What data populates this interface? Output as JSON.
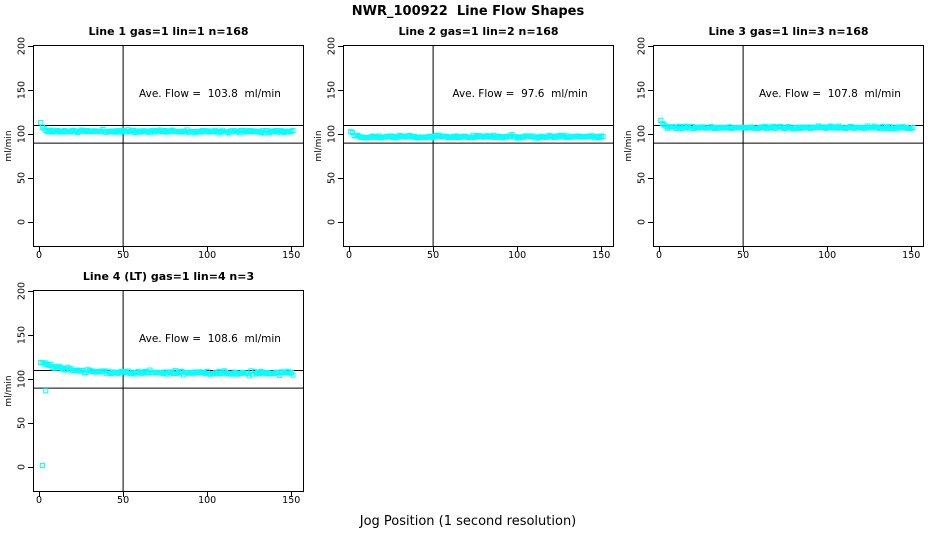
{
  "page": {
    "main_title": "NWR_100922  Line Flow Shapes",
    "x_axis_label": "Jog Position (1 second resolution)"
  },
  "colors": {
    "marker": "#00FFFF",
    "axis": "#000000",
    "background": "#FFFFFF",
    "ref_line": "#000000"
  },
  "chart_data": [
    {
      "type": "scatter",
      "title": "Line 1 gas=1 lin=1 n=168",
      "annotation": "Ave. Flow =  103.8  ml/min",
      "avg_flow_ml_min": 103.8,
      "n": 168,
      "ylabel": "ml/min",
      "x_ticks": [
        "0",
        "50",
        "100",
        "150"
      ],
      "y_ticks": [
        "0",
        "50",
        "100",
        "150",
        "200"
      ],
      "x_tick_values": [
        0,
        50,
        100,
        150
      ],
      "y_tick_values": [
        0,
        50,
        100,
        150,
        200
      ],
      "xlim": [
        -3,
        157
      ],
      "ylim": [
        -27,
        200.5
      ],
      "ref_lines": {
        "h": [
          90,
          110
        ],
        "v": [
          50
        ]
      },
      "marker": "open-square",
      "marker_color": "#00FFFF",
      "series_model": {
        "x_start": 1,
        "x_end": 151,
        "step": 1,
        "start": 113,
        "settle": 103.6,
        "tau": 1.4,
        "noise_sd": 0.7,
        "seed": 11
      },
      "outliers": []
    },
    {
      "type": "scatter",
      "title": "Line 2 gas=1 lin=2 n=168",
      "annotation": "Ave. Flow =  97.6  ml/min",
      "avg_flow_ml_min": 97.6,
      "n": 168,
      "ylabel": "ml/min",
      "x_ticks": [
        "0",
        "50",
        "100",
        "150"
      ],
      "y_ticks": [
        "0",
        "50",
        "100",
        "150",
        "200"
      ],
      "x_tick_values": [
        0,
        50,
        100,
        150
      ],
      "y_tick_values": [
        0,
        50,
        100,
        150,
        200
      ],
      "xlim": [
        -3,
        157
      ],
      "ylim": [
        -27,
        200.5
      ],
      "ref_lines": {
        "h": [
          90,
          110
        ],
        "v": [
          50
        ]
      },
      "marker": "open-square",
      "marker_color": "#00FFFF",
      "series_model": {
        "x_start": 1,
        "x_end": 151,
        "step": 1,
        "start": 104,
        "settle": 97.3,
        "tau": 2.2,
        "noise_sd": 0.8,
        "seed": 22
      },
      "outliers": []
    },
    {
      "type": "scatter",
      "title": "Line 3 gas=1 lin=3 n=168",
      "annotation": "Ave. Flow =  107.8  ml/min",
      "avg_flow_ml_min": 107.8,
      "n": 168,
      "ylabel": "ml/min",
      "x_ticks": [
        "0",
        "50",
        "100",
        "150"
      ],
      "y_ticks": [
        "0",
        "50",
        "100",
        "150",
        "200"
      ],
      "x_tick_values": [
        0,
        50,
        100,
        150
      ],
      "y_tick_values": [
        0,
        50,
        100,
        150,
        200
      ],
      "xlim": [
        -3,
        157
      ],
      "ylim": [
        -27,
        200.5
      ],
      "ref_lines": {
        "h": [
          90,
          110
        ],
        "v": [
          50
        ]
      },
      "marker": "open-square",
      "marker_color": "#00FFFF",
      "series_model": {
        "x_start": 1,
        "x_end": 151,
        "step": 1,
        "start": 116,
        "settle": 107.6,
        "tau": 1.5,
        "noise_sd": 0.7,
        "seed": 33
      },
      "outliers": []
    },
    {
      "type": "scatter",
      "title": "Line 4 (LT) gas=1 lin=4 n=3",
      "annotation": "Ave. Flow =  108.6  ml/min",
      "avg_flow_ml_min": 108.6,
      "n": 3,
      "ylabel": "ml/min",
      "x_ticks": [
        "0",
        "50",
        "100",
        "150"
      ],
      "y_ticks": [
        "0",
        "50",
        "100",
        "150",
        "200"
      ],
      "x_tick_values": [
        0,
        50,
        100,
        150
      ],
      "y_tick_values": [
        0,
        50,
        100,
        150,
        200
      ],
      "xlim": [
        -3,
        157
      ],
      "ylim": [
        -27,
        200.5
      ],
      "ref_lines": {
        "h": [
          90,
          110
        ],
        "v": [
          50
        ]
      },
      "marker": "open-square",
      "marker_color": "#00FFFF",
      "series_model": {
        "x_start": 1,
        "x_end": 151,
        "step": 1,
        "start": 119.5,
        "settle": 107.4,
        "tau": 15,
        "noise_sd": 1.2,
        "seed": 44
      },
      "outliers": [
        {
          "x": 2,
          "y": 2
        },
        {
          "x": 4,
          "y": 87
        }
      ]
    }
  ]
}
